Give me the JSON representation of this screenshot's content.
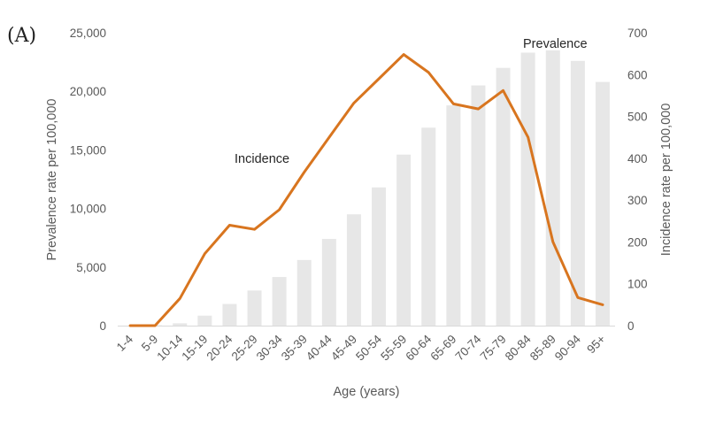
{
  "panel_label": "(A)",
  "chart_data": {
    "type": "bar+line",
    "xlabel": "Age (years)",
    "categories": [
      "1-4",
      "5-9",
      "10-14",
      "15-19",
      "20-24",
      "25-29",
      "30-34",
      "35-39",
      "40-44",
      "45-49",
      "50-54",
      "55-59",
      "60-64",
      "65-69",
      "70-74",
      "75-79",
      "80-84",
      "85-89",
      "90-94",
      "95+"
    ],
    "left_axis": {
      "label": "Prevalence rate per 100,000",
      "ylim": [
        0,
        25000
      ],
      "ticks": [
        "0",
        "5,000",
        "10,000",
        "15,000",
        "20,000",
        "25,000"
      ]
    },
    "right_axis": {
      "label": "Incidence rate per 100,000",
      "ylim": [
        0,
        700
      ],
      "ticks": [
        "0",
        "100",
        "200",
        "300",
        "400",
        "500",
        "600",
        "700"
      ]
    },
    "series": [
      {
        "name": "Prevalence",
        "type": "bar",
        "axis": "left",
        "color": "#e7e7e7",
        "values": [
          0,
          30,
          200,
          850,
          1850,
          3000,
          4150,
          5600,
          7400,
          9500,
          11800,
          14600,
          16900,
          18800,
          20500,
          22000,
          23300,
          23500,
          22600,
          20800
        ]
      },
      {
        "name": "Incidence",
        "type": "line",
        "axis": "right",
        "color": "#d8751f",
        "values": [
          0,
          0,
          65,
          172,
          240,
          230,
          277,
          367,
          450,
          532,
          590,
          648,
          605,
          530,
          518,
          562,
          450,
          200,
          67,
          50
        ]
      }
    ],
    "annotations": [
      {
        "text": "Incidence",
        "series": "Incidence"
      },
      {
        "text": "Prevalence",
        "series": "Prevalence"
      }
    ],
    "grid": false
  }
}
